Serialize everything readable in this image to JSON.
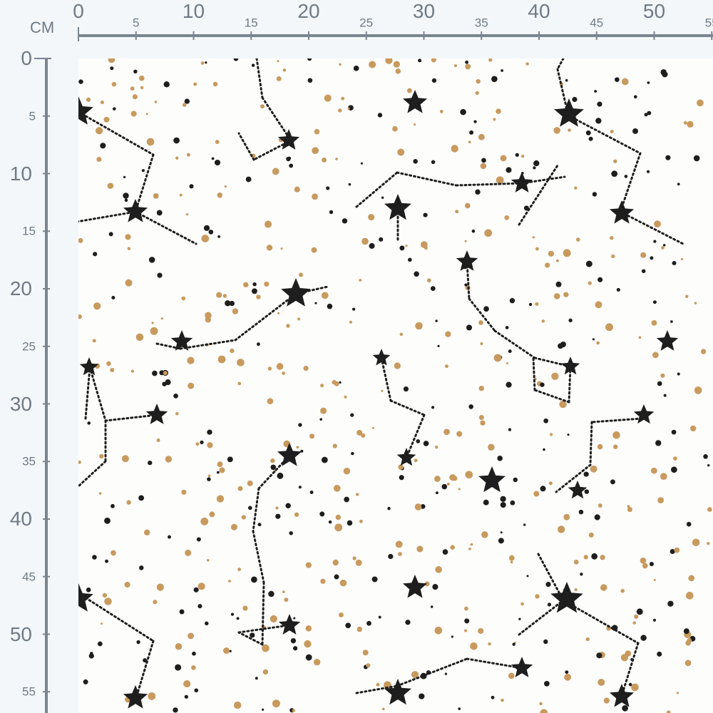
{
  "ruler": {
    "unit": "CM",
    "top_labels": [
      "0",
      "5",
      "10",
      "15",
      "20",
      "25",
      "30",
      "35",
      "40",
      "45",
      "50",
      "55"
    ],
    "left_labels": [
      "0",
      "5",
      "10",
      "15",
      "20",
      "25",
      "30",
      "35",
      "40",
      "45",
      "50",
      "55"
    ]
  },
  "colors": {
    "ruler": "#7a8590",
    "background": "#f3f7fa",
    "fabric": "#fdfdfc",
    "gold_dots": "#c89a5e",
    "black_stars": "#1e1e1e"
  }
}
